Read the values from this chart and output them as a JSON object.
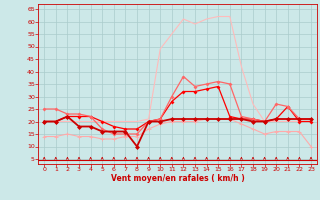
{
  "xlabel": "Vent moyen/en rafales ( km/h )",
  "background_color": "#cce8e8",
  "grid_color": "#aacccc",
  "x_ticks": [
    0,
    1,
    2,
    3,
    4,
    5,
    6,
    7,
    8,
    9,
    10,
    11,
    12,
    13,
    14,
    15,
    16,
    17,
    18,
    19,
    20,
    21,
    22,
    23
  ],
  "y_ticks": [
    5,
    10,
    15,
    20,
    25,
    30,
    35,
    40,
    45,
    50,
    55,
    60,
    65
  ],
  "ylim": [
    3,
    67
  ],
  "xlim": [
    -0.5,
    23.5
  ],
  "series_wind_max": [
    20,
    20,
    20,
    20,
    20,
    20,
    20,
    20,
    20,
    21,
    49,
    55,
    61,
    59,
    61,
    62,
    62,
    42,
    27,
    20,
    20,
    20,
    20,
    20
  ],
  "series_wind_gust": [
    25,
    25,
    23,
    23,
    22,
    17,
    15,
    15,
    15,
    20,
    21,
    30,
    38,
    34,
    35,
    36,
    35,
    22,
    21,
    20,
    27,
    26,
    21,
    21
  ],
  "series_wind_avg": [
    20,
    20,
    22,
    18,
    18,
    16,
    16,
    16,
    10,
    20,
    20,
    21,
    21,
    21,
    21,
    21,
    21,
    21,
    20,
    20,
    21,
    21,
    21,
    21
  ],
  "series_wind_trend": [
    20,
    20,
    22,
    22,
    22,
    20,
    18,
    17,
    17,
    20,
    21,
    28,
    32,
    32,
    33,
    34,
    22,
    21,
    21,
    20,
    21,
    26,
    20,
    20
  ],
  "series_wind_light": [
    14,
    14,
    15,
    14,
    14,
    13,
    13,
    14,
    14,
    17,
    19,
    20,
    20,
    20,
    21,
    21,
    21,
    19,
    17,
    15,
    16,
    16,
    16,
    10
  ],
  "color_max": "#ffbbbb",
  "color_gust": "#ff6666",
  "color_avg": "#cc0000",
  "color_trend": "#ff0000",
  "color_light": "#ffaaaa",
  "xlabel_color": "#cc0000",
  "tick_color": "#cc0000",
  "axis_color": "#cc0000",
  "arrow_color": "#cc0000"
}
